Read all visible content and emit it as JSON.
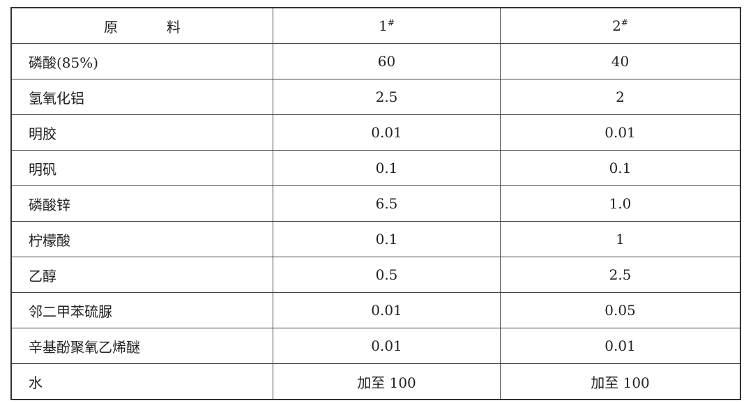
{
  "table": {
    "headers": [
      "原",
      "料",
      "1",
      "#",
      "2",
      "#"
    ],
    "rows": [
      [
        "磷酸(85%)",
        "60",
        "40"
      ],
      [
        "氢氧化铝",
        "2.5",
        "2"
      ],
      [
        "明胶",
        "0.01",
        "0.01"
      ],
      [
        "明矾",
        "0.1",
        "0.1"
      ],
      [
        "磷酸锌",
        "6.5",
        "1.0"
      ],
      [
        "柠檬酸",
        "0.1",
        "1"
      ],
      [
        "乙醇",
        "0.5",
        "2.5"
      ],
      [
        "邻二甲苯硫脲",
        "0.01",
        "0.05"
      ],
      [
        "辛基酚聚氧乙烯醚",
        "0.01",
        "0.01"
      ],
      [
        "水",
        "加至 100",
        "加至 100"
      ]
    ]
  }
}
